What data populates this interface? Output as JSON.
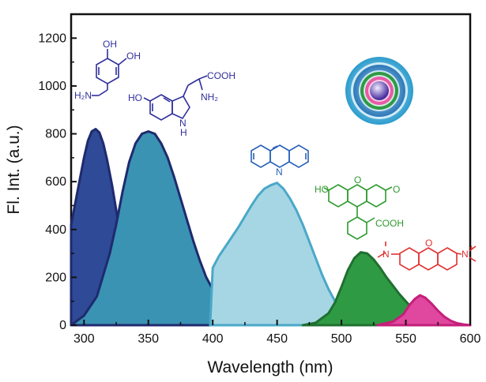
{
  "chart_data": {
    "type": "area",
    "xlabel": "Wavelength (nm)",
    "ylabel": "Fl. Int. (a.u.)",
    "xlim": [
      290,
      600
    ],
    "ylim": [
      0,
      1300
    ],
    "xticks": [
      300,
      350,
      400,
      450,
      500,
      550,
      600
    ],
    "yticks": [
      0,
      200,
      400,
      600,
      800,
      1000,
      1200
    ],
    "grid": false,
    "series": [
      {
        "color": "#2f4a96",
        "stroke": "#1f2a6e",
        "x": [
          290,
          295,
          300,
          303,
          306,
          309,
          312,
          315,
          318,
          322,
          326,
          330,
          335,
          340,
          345,
          350,
          360,
          370,
          380,
          390,
          400,
          410,
          420,
          440,
          460,
          480
        ],
        "y": [
          420,
          560,
          700,
          770,
          810,
          820,
          805,
          760,
          690,
          580,
          450,
          320,
          210,
          140,
          95,
          70,
          50,
          38,
          28,
          22,
          16,
          12,
          8,
          4,
          1,
          0
        ]
      },
      {
        "color": "#3a93b3",
        "stroke": "#1f2a6e",
        "x": [
          290,
          300,
          310,
          320,
          325,
          330,
          335,
          340,
          345,
          350,
          355,
          360,
          365,
          370,
          375,
          380,
          385,
          390,
          395,
          400,
          410,
          420,
          430,
          440,
          450,
          460,
          470,
          480,
          490
        ],
        "y": [
          0,
          40,
          120,
          300,
          420,
          560,
          680,
          760,
          800,
          810,
          800,
          760,
          700,
          620,
          530,
          440,
          350,
          270,
          200,
          150,
          100,
          70,
          50,
          35,
          20,
          10,
          5,
          2,
          0
        ]
      },
      {
        "color": "#a6d6e4",
        "stroke": "#4aa8c8",
        "x": [
          398,
          400,
          405,
          410,
          415,
          420,
          425,
          430,
          435,
          440,
          445,
          450,
          455,
          460,
          465,
          470,
          475,
          480,
          485,
          490,
          495,
          500,
          510,
          520,
          530
        ],
        "y": [
          0,
          240,
          290,
          330,
          370,
          410,
          455,
          500,
          540,
          570,
          585,
          595,
          570,
          530,
          480,
          420,
          350,
          280,
          210,
          150,
          100,
          60,
          25,
          8,
          0
        ]
      },
      {
        "color": "#2f9a44",
        "stroke": "#1f7030",
        "x": [
          470,
          480,
          490,
          495,
          500,
          505,
          510,
          515,
          520,
          525,
          530,
          535,
          540,
          545,
          550,
          555,
          560,
          570,
          580
        ],
        "y": [
          0,
          10,
          50,
          95,
          160,
          230,
          280,
          305,
          300,
          275,
          240,
          200,
          165,
          130,
          100,
          70,
          45,
          20,
          0
        ]
      },
      {
        "color": "#e0479e",
        "stroke": "#c41f7a",
        "x": [
          528,
          540,
          548,
          553,
          557,
          561,
          565,
          570,
          575,
          580,
          585,
          590,
          595,
          600
        ],
        "y": [
          0,
          15,
          45,
          85,
          110,
          125,
          115,
          90,
          60,
          35,
          18,
          8,
          3,
          0
        ]
      }
    ]
  },
  "molecules": {
    "dopamine": {
      "labels": [
        "OH",
        "OH",
        "H₂N"
      ],
      "color": "#2f2f9c"
    },
    "serotonin": {
      "labels": [
        "HO",
        "COOH",
        "NH₂",
        "N",
        "H"
      ],
      "color": "#2f2f9c"
    },
    "acridine": {
      "labels": [
        "N"
      ],
      "color": "#2860b8"
    },
    "fluorescein": {
      "labels": [
        "HO",
        "O",
        "O",
        "COOH"
      ],
      "color": "#2e9a2e"
    },
    "rhodamine": {
      "labels": [
        "N",
        "O",
        "N",
        "+"
      ],
      "color": "#e03030"
    }
  },
  "decorations": {
    "nano_rings_colors": [
      "#3fb0d8",
      "#2a7fc0",
      "#2f9a44",
      "#e85aa6",
      "#5a3fb0"
    ]
  }
}
